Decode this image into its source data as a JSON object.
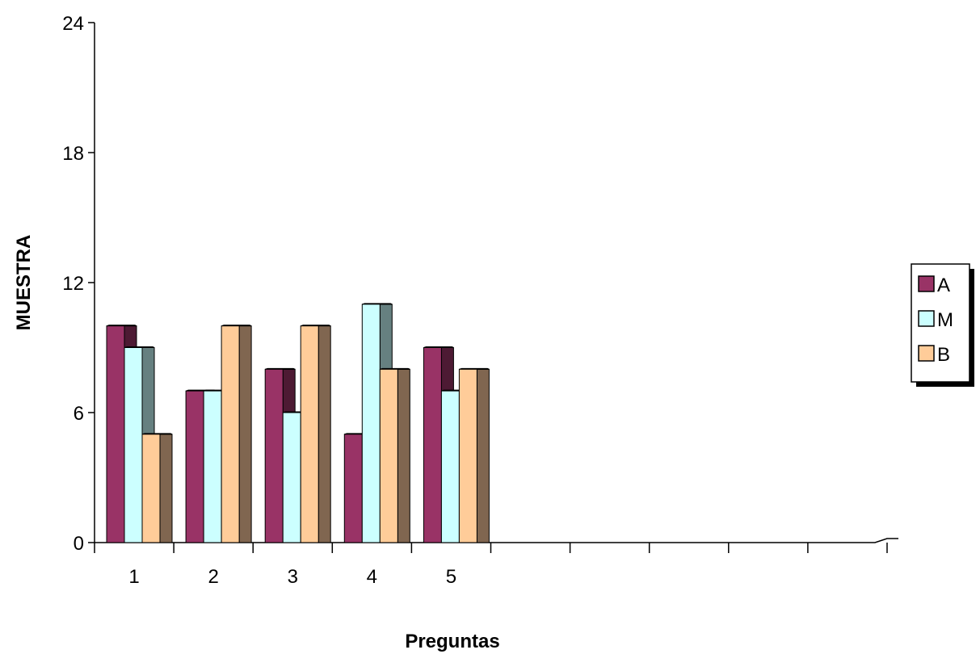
{
  "chart_data": {
    "type": "bar",
    "xlabel": "Preguntas",
    "ylabel": "MUESTRA",
    "ylim": [
      0,
      24
    ],
    "yticks": [
      0,
      6,
      12,
      18,
      24
    ],
    "category_slots": 10,
    "categories": [
      "1",
      "2",
      "3",
      "4",
      "5"
    ],
    "series": [
      {
        "name": "A",
        "values": [
          10,
          7,
          8,
          5,
          9
        ],
        "color": "#993366",
        "side_color": "#4d1a33"
      },
      {
        "name": "M",
        "values": [
          9,
          7,
          6,
          11,
          7
        ],
        "color": "#ccffff",
        "side_color": "#668080"
      },
      {
        "name": "B",
        "values": [
          5,
          10,
          10,
          8,
          8
        ],
        "color": "#ffcc99",
        "side_color": "#806650"
      }
    ],
    "legend_position": "right",
    "grid": false
  }
}
